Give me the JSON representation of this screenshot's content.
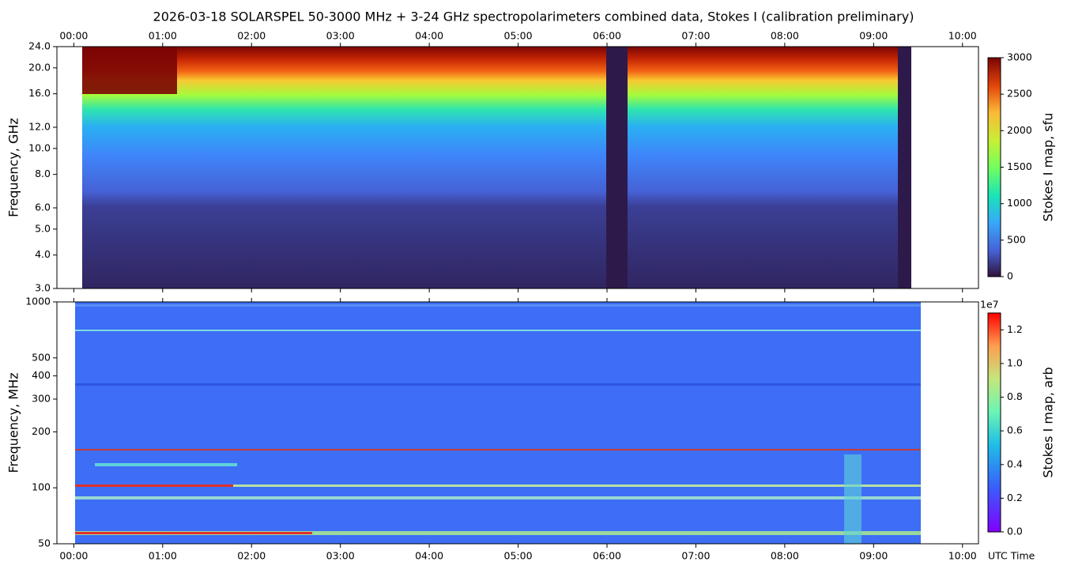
{
  "chart_data": [
    {
      "type": "heatmap",
      "title": "2026-03-18  SOLARSPEL  50-3000 MHz  +  3-24 GHz  spectropolarimeters combined data,  Stokes I  (calibration preliminary)",
      "ylabel": "Frequency, GHz",
      "xlim": [
        -0.19,
        10.18
      ],
      "xticks": [
        {
          "value": 0,
          "label": "00:00"
        },
        {
          "value": 1,
          "label": "01:00"
        },
        {
          "value": 2,
          "label": "02:00"
        },
        {
          "value": 3,
          "label": "03:00"
        },
        {
          "value": 4,
          "label": "04:00"
        },
        {
          "value": 5,
          "label": "05:00"
        },
        {
          "value": 6,
          "label": "06:00"
        },
        {
          "value": 7,
          "label": "07:00"
        },
        {
          "value": 8,
          "label": "08:00"
        },
        {
          "value": 9,
          "label": "09:00"
        },
        {
          "value": 10,
          "label": "10:00"
        }
      ],
      "xtick_side": "top",
      "ylim": [
        3,
        24
      ],
      "log_y": true,
      "yticks": [
        {
          "value": 3,
          "label": "3.0"
        },
        {
          "value": 4,
          "label": "4.0"
        },
        {
          "value": 5,
          "label": "5.0"
        },
        {
          "value": 6,
          "label": "6.0"
        },
        {
          "value": 8,
          "label": "8.0"
        },
        {
          "value": 10,
          "label": "10.0"
        },
        {
          "value": 12,
          "label": "12.0"
        },
        {
          "value": 16,
          "label": "16.0"
        },
        {
          "value": 20,
          "label": "20.0"
        },
        {
          "value": 24,
          "label": "24.0"
        }
      ],
      "colorbar": {
        "label": "Stokes I map, sfu",
        "colormap": "turbo",
        "lim": [
          0,
          3000
        ],
        "ticks": [
          0,
          500,
          1000,
          1500,
          2000,
          2500,
          3000
        ]
      }
    },
    {
      "type": "heatmap",
      "ylabel": "Frequency, MHz",
      "xlabel": "UTC Time",
      "xlim": [
        -0.19,
        10.18
      ],
      "xticks": [
        {
          "value": 0,
          "label": "00:00"
        },
        {
          "value": 1,
          "label": "01:00"
        },
        {
          "value": 2,
          "label": "02:00"
        },
        {
          "value": 3,
          "label": "03:00"
        },
        {
          "value": 4,
          "label": "04:00"
        },
        {
          "value": 5,
          "label": "05:00"
        },
        {
          "value": 6,
          "label": "06:00"
        },
        {
          "value": 7,
          "label": "07:00"
        },
        {
          "value": 8,
          "label": "08:00"
        },
        {
          "value": 9,
          "label": "09:00"
        },
        {
          "value": 10,
          "label": "10:00"
        }
      ],
      "xtick_side": "bottom",
      "ylim": [
        50,
        1000
      ],
      "log_y": true,
      "yticks": [
        50,
        100,
        200,
        300,
        400,
        500,
        1000
      ],
      "colorbar": {
        "label": "Stokes I map, arb",
        "colormap": "rainbow",
        "lim": [
          0,
          1.3
        ],
        "offset_label": "1e7",
        "ticks": [
          {
            "value": 0,
            "label": "0.0"
          },
          {
            "value": 0.2,
            "label": "0.2"
          },
          {
            "value": 0.4,
            "label": "0.4"
          },
          {
            "value": 0.6,
            "label": "0.6"
          },
          {
            "value": 0.8,
            "label": "0.8"
          },
          {
            "value": 1,
            "label": "1.0"
          },
          {
            "value": 1.2,
            "label": "1.2"
          }
        ]
      }
    }
  ]
}
